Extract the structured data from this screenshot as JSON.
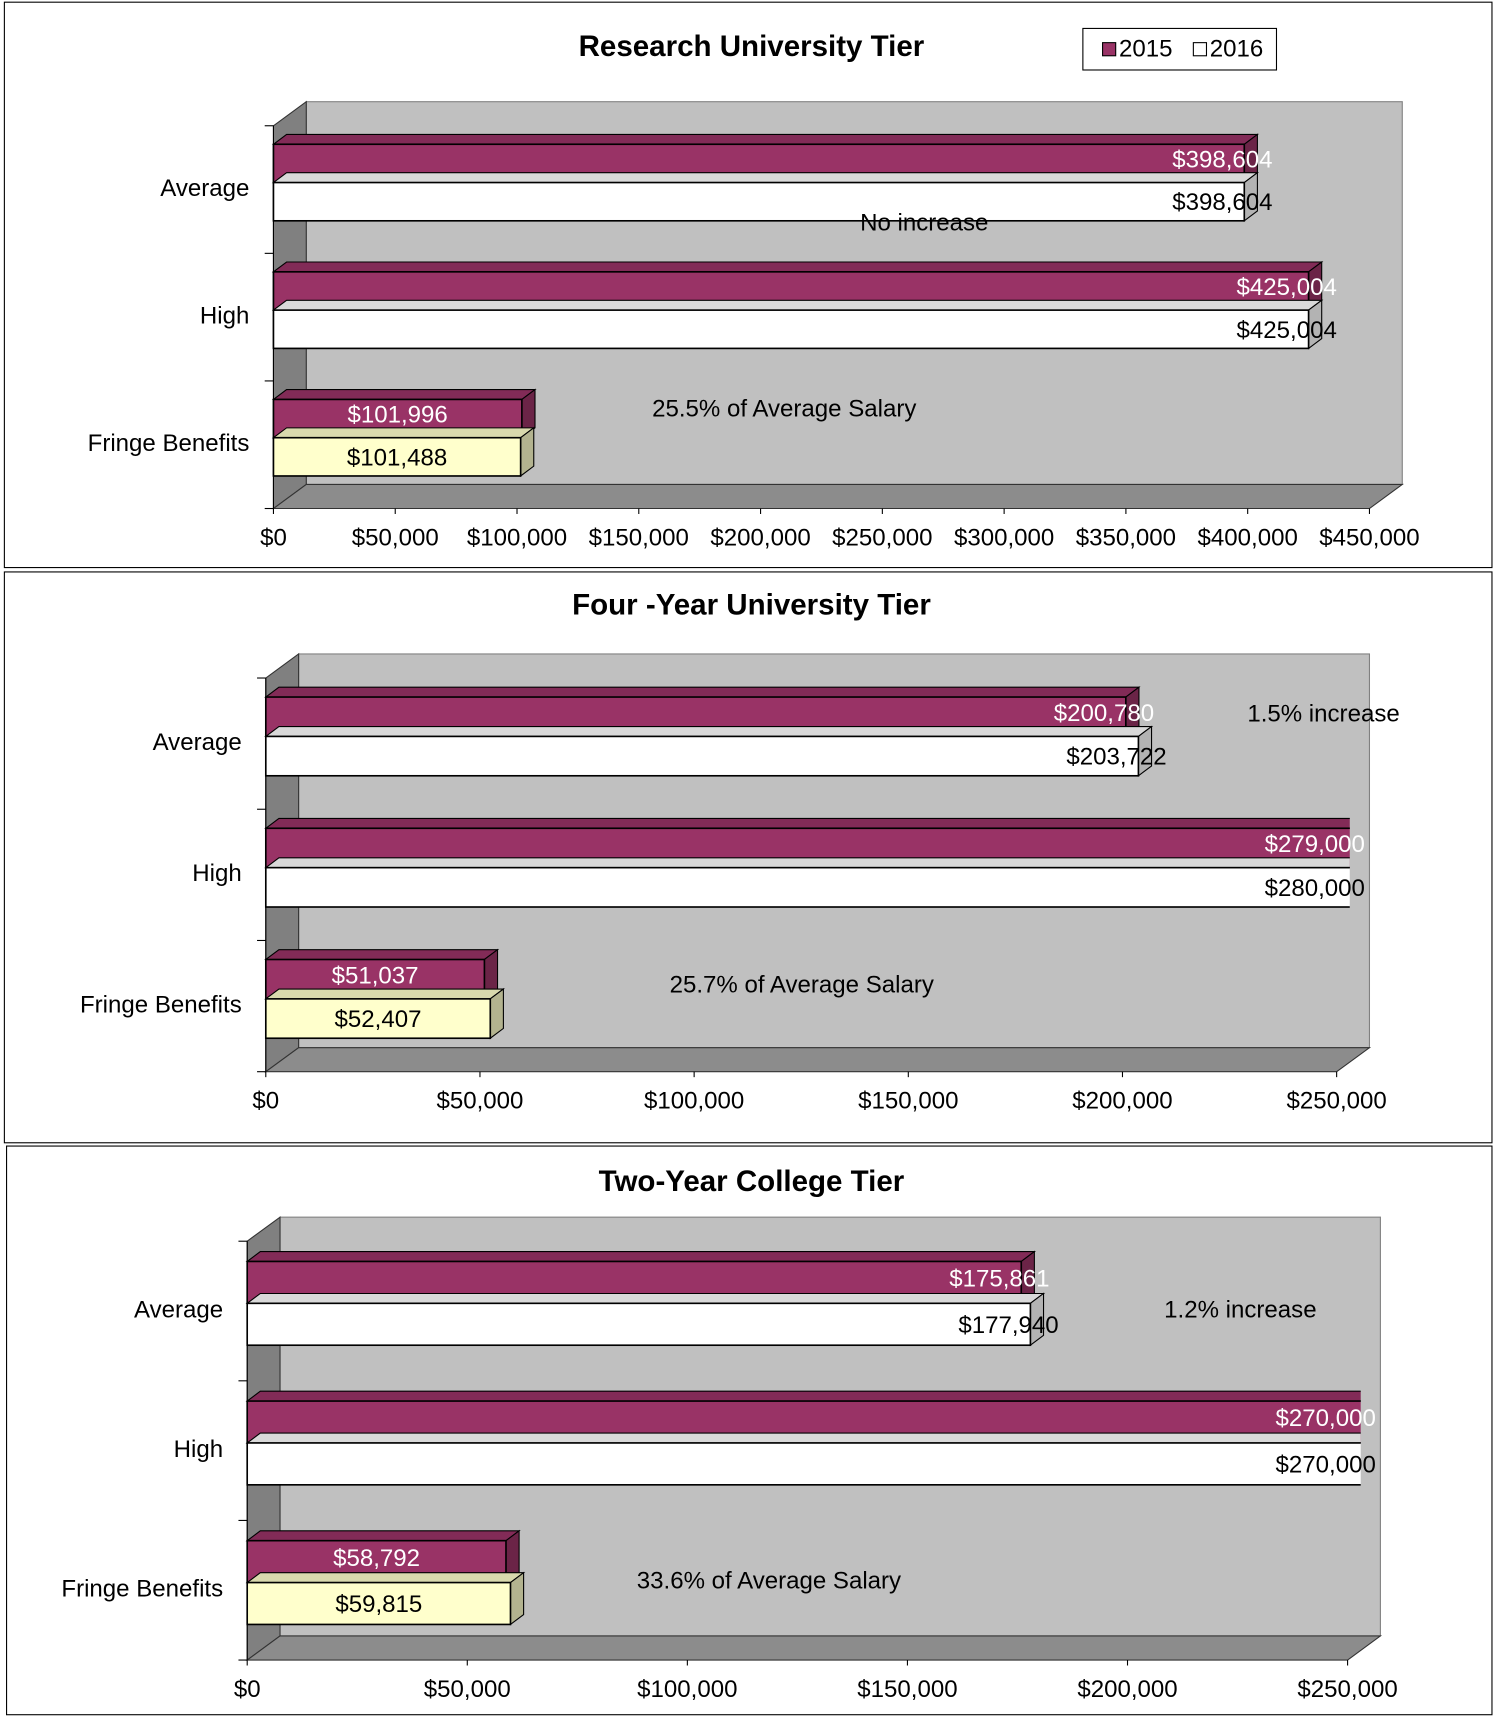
{
  "chart_data": [
    {
      "type": "bar",
      "orientation": "horizontal",
      "title": "Research University Tier",
      "categories": [
        "Average",
        "High",
        "Fringe Benefits"
      ],
      "series": [
        {
          "name": "2015",
          "color": "#993366",
          "values": [
            398604,
            425004,
            101996
          ],
          "value_labels": [
            "$398,604",
            "$425,004",
            "$101,996"
          ]
        },
        {
          "name": "2016",
          "color": "#ffffff",
          "colors": [
            "#ffffff",
            "#ffffff",
            "#ffffcc"
          ],
          "values": [
            398604,
            425004,
            101488
          ],
          "value_labels": [
            "$398,604",
            "$425,004",
            "$101,488"
          ]
        }
      ],
      "xlim": [
        0,
        450000
      ],
      "xticks": [
        {
          "value": 0,
          "label": "$0"
        },
        {
          "value": 50000,
          "label": "$50,000"
        },
        {
          "value": 100000,
          "label": "$100,000"
        },
        {
          "value": 150000,
          "label": "$150,000"
        },
        {
          "value": 200000,
          "label": "$200,000"
        },
        {
          "value": 250000,
          "label": "$250,000"
        },
        {
          "value": 300000,
          "label": "$300,000"
        },
        {
          "value": 350000,
          "label": "$350,000"
        },
        {
          "value": 400000,
          "label": "$400,000"
        },
        {
          "value": 450000,
          "label": "$450,000"
        }
      ],
      "annotations": [
        "No increase",
        "25.5% of Average Salary"
      ],
      "legend": "top-right"
    },
    {
      "type": "bar",
      "orientation": "horizontal",
      "title": "Four -Year University Tier",
      "categories": [
        "Average",
        "High",
        "Fringe Benefits"
      ],
      "series": [
        {
          "color": "#993366",
          "values": [
            200780,
            279000,
            51037
          ],
          "value_labels": [
            "$200,780",
            "$279,000",
            "$51,037"
          ]
        },
        {
          "color": "#ffffff",
          "colors": [
            "#ffffff",
            "#ffffff",
            "#ffffcc"
          ],
          "values": [
            203722,
            280000,
            52407
          ],
          "value_labels": [
            "$203,722",
            "$280,000",
            "$52,407"
          ]
        }
      ],
      "xlim": [
        0,
        250000
      ],
      "xticks": [
        {
          "value": 0,
          "label": "$0"
        },
        {
          "value": 50000,
          "label": "$50,000"
        },
        {
          "value": 100000,
          "label": "$100,000"
        },
        {
          "value": 150000,
          "label": "$150,000"
        },
        {
          "value": 200000,
          "label": "$200,000"
        },
        {
          "value": 250000,
          "label": "$250,000"
        }
      ],
      "annotations": [
        "1.5% increase",
        "25.7% of Average Salary"
      ]
    },
    {
      "type": "bar",
      "orientation": "horizontal",
      "title": "Two-Year College Tier",
      "categories": [
        "Average",
        "High",
        "Fringe Benefits"
      ],
      "series": [
        {
          "color": "#993366",
          "values": [
            175861,
            270000,
            58792
          ],
          "value_labels": [
            "$175,861",
            "$270,000",
            "$58,792"
          ]
        },
        {
          "color": "#ffffff",
          "colors": [
            "#ffffff",
            "#ffffff",
            "#ffffcc"
          ],
          "values": [
            177940,
            270000,
            59815
          ],
          "value_labels": [
            "$177,940",
            "$270,000",
            "$59,815"
          ]
        }
      ],
      "xlim": [
        0,
        250000
      ],
      "xticks": [
        {
          "value": 0,
          "label": "$0"
        },
        {
          "value": 50000,
          "label": "$50,000"
        },
        {
          "value": 100000,
          "label": "$100,000"
        },
        {
          "value": 150000,
          "label": "$150,000"
        },
        {
          "value": 200000,
          "label": "$200,000"
        },
        {
          "value": 250000,
          "label": "$250,000"
        }
      ],
      "annotations": [
        "1.2% increase",
        "33.6% of Average Salary"
      ]
    }
  ]
}
